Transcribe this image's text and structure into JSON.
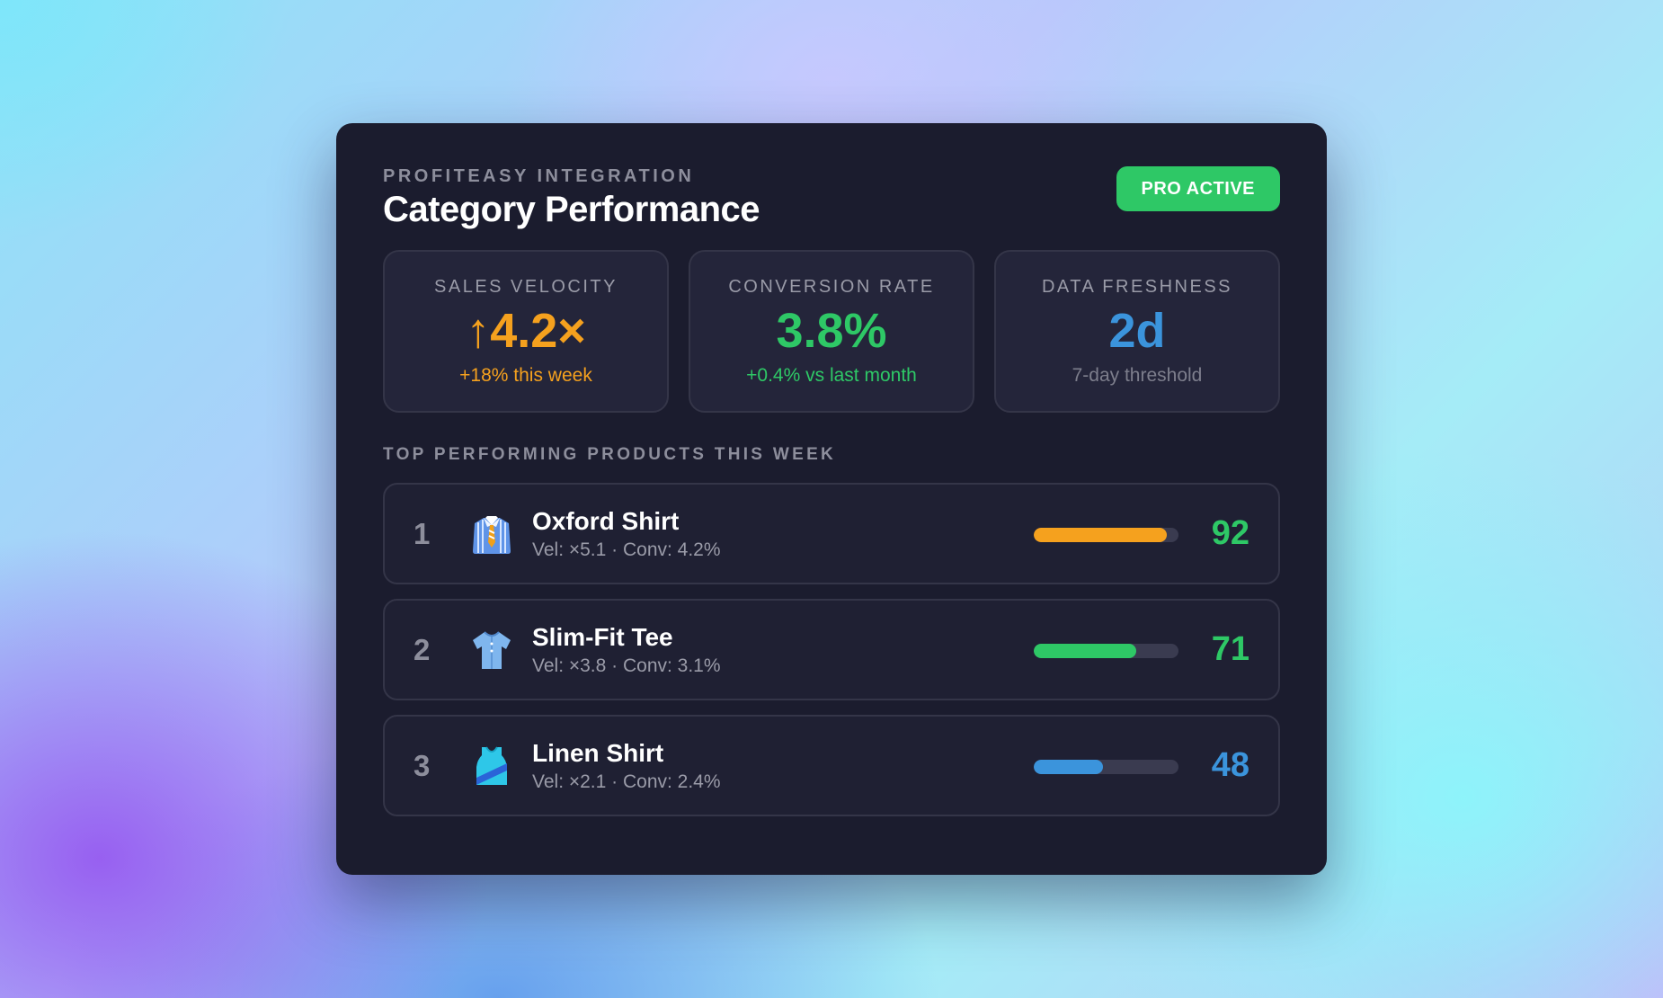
{
  "header": {
    "eyebrow": "PROFITEASY INTEGRATION",
    "title": "Category Performance",
    "badge": "PRO ACTIVE"
  },
  "kpis": [
    {
      "label": "SALES VELOCITY",
      "value": "↑4.2×",
      "sub": "+18% this week",
      "color": "#f5a11e",
      "sub_color": "#f5a11e"
    },
    {
      "label": "CONVERSION RATE",
      "value": "3.8%",
      "sub": "+0.4% vs last month",
      "color": "#2ec866",
      "sub_color": "#2ec866"
    },
    {
      "label": "DATA FRESHNESS",
      "value": "2d",
      "sub": "7-day threshold",
      "color": "#3b94dc",
      "sub_color": "#7d7e8c"
    }
  ],
  "section_title": "TOP PERFORMING PRODUCTS THIS WEEK",
  "products": [
    {
      "rank": "1",
      "icon": "dress-shirt-icon",
      "name": "Oxford Shirt",
      "meta": "Vel: ×5.1 · Conv: 4.2%",
      "score": "92",
      "score_color": "#2ec866",
      "bar_color": "#f5a11e"
    },
    {
      "rank": "2",
      "icon": "t-shirt-icon",
      "name": "Slim-Fit Tee",
      "meta": "Vel: ×3.8 · Conv: 3.1%",
      "score": "71",
      "score_color": "#2ec866",
      "bar_color": "#2ec866"
    },
    {
      "rank": "3",
      "icon": "tank-top-icon",
      "name": "Linen Shirt",
      "meta": "Vel: ×2.1 · Conv: 2.4%",
      "score": "48",
      "score_color": "#3b94dc",
      "bar_color": "#3b94dc"
    }
  ],
  "colors": {
    "card_bg": "#1b1c2e",
    "badge_bg": "#2ec866"
  }
}
